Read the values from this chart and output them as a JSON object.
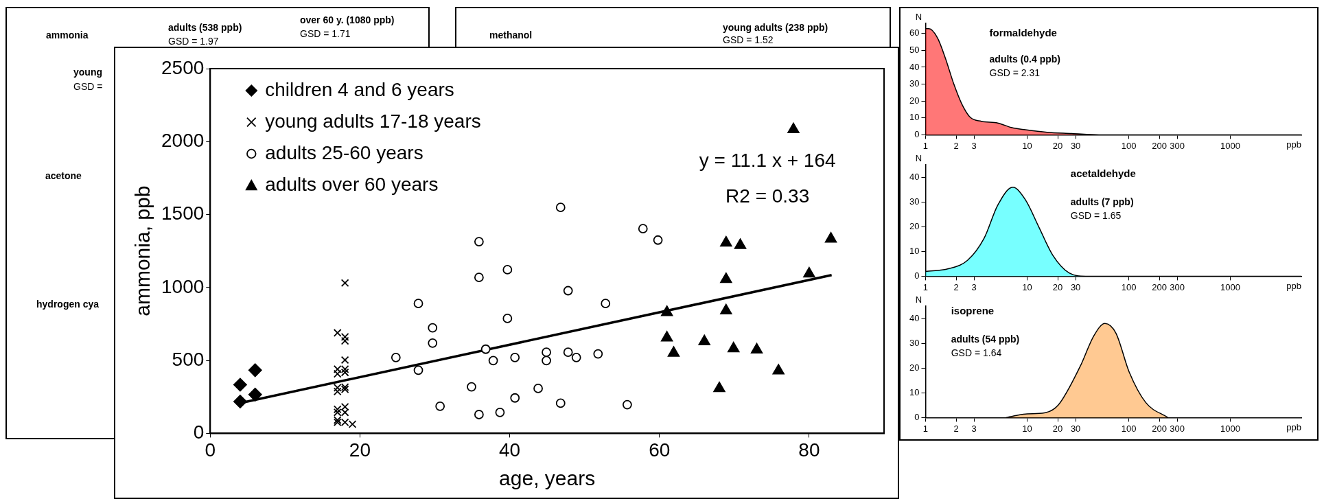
{
  "chart_data": [
    {
      "type": "scatter",
      "xlabel": "age, years",
      "ylabel": "ammonia, ppb",
      "xlim": [
        0,
        90
      ],
      "xticks": [
        0,
        20,
        40,
        60,
        80
      ],
      "ylim": [
        0,
        2500
      ],
      "yticks": [
        0,
        500,
        1000,
        1500,
        2000,
        2500
      ],
      "legend": "top left",
      "annotations": [
        "y = 11.1 x + 164",
        "R2 = 0.33"
      ],
      "series": [
        {
          "name": "children 4 and 6 years",
          "color": "#000000",
          "marker": "diamond",
          "x": [
            4,
            4,
            6,
            6
          ],
          "values": [
            218,
            334,
            433,
            266
          ]
        },
        {
          "name": "young adults 17-18 years",
          "color": "#000000",
          "marker": "cross",
          "x": [
            18,
            17,
            18,
            18,
            18,
            17,
            18,
            17,
            18,
            17,
            18,
            17,
            18,
            17,
            18,
            17,
            17,
            17,
            18,
            19,
            18
          ],
          "values": [
            1031,
            689,
            661,
            634,
            503,
            440,
            440,
            408,
            418,
            313,
            317,
            287,
            302,
            165,
            182,
            144,
            91,
            76,
            76,
            63,
            144
          ]
        },
        {
          "name": "adults 25-60 years",
          "color": "#000000",
          "marker": "circle",
          "x": [
            24.8,
            27.8,
            27.8,
            29.7,
            29.7,
            30.7,
            34.9,
            35.9,
            35.9,
            35.9,
            36.8,
            37.8,
            38.7,
            39.7,
            39.7,
            40.7,
            40.7,
            43.8,
            44.9,
            44.9,
            46.8,
            46.8,
            47.8,
            47.8,
            48.9,
            51.8,
            52.8,
            55.7,
            57.8,
            59.8
          ],
          "values": [
            520,
            890,
            433,
            723,
            619,
            186,
            319,
            1314,
            1069,
            129,
            577,
            499,
            144,
            1122,
            788,
            520,
            243,
            308,
            556,
            499,
            1549,
            207,
            978,
            556,
            520,
            545,
            890,
            197,
            1403,
            1325
          ]
        },
        {
          "name": "adults over 60 years",
          "color": "#000000",
          "marker": "triangle",
          "x": [
            77.9,
            61,
            61,
            61.9,
            66,
            68,
            68.9,
            68.9,
            68.9,
            69.9,
            70.8,
            73,
            75.9,
            80,
            82.9
          ],
          "values": [
            2083,
            830,
            655,
            551,
            630,
            308,
            1306,
            1056,
            841,
            581,
            1289,
            573,
            429,
            1094,
            1333
          ]
        },
        {
          "type": "line",
          "color": "#000000",
          "line_style": "solid",
          "x": [
            4,
            83
          ],
          "values": [
            208,
            1085
          ]
        }
      ]
    },
    {
      "type": "area",
      "title": "formaldehyde",
      "xlabel": "ppb",
      "ylabel": "N",
      "log": "x",
      "xlim": [
        1,
        5000
      ],
      "xticks": [
        1,
        2,
        3,
        10,
        20,
        30,
        100,
        200,
        300,
        1000
      ],
      "ylim": [
        0,
        66
      ],
      "yticks": [
        0,
        10,
        20,
        30,
        40,
        50,
        60
      ],
      "annotations": [
        "adults (0.4 ppb)",
        "GSD = 2.31"
      ],
      "series": [
        {
          "color": "#ff0000",
          "x": [
            1,
            1.08,
            1.31,
            1.57,
            1.9,
            2.29,
            2.76,
            3.54,
            5.13,
            7,
            9.6,
            15.7,
            27.5,
            51,
            5000
          ],
          "values": [
            62.8,
            62.8,
            57.4,
            45.3,
            30,
            17.9,
            10.3,
            8,
            7,
            4.3,
            3,
            1.5,
            0.8,
            0,
            0
          ]
        }
      ]
    },
    {
      "type": "area",
      "title": "acetaldehyde",
      "xlabel": "ppb",
      "ylabel": "N",
      "log": "x",
      "xlim": [
        1,
        5000
      ],
      "xticks": [
        1,
        2,
        3,
        10,
        20,
        30,
        100,
        200,
        300,
        1000
      ],
      "ylim": [
        0,
        45
      ],
      "yticks": [
        0,
        10,
        20,
        30,
        40
      ],
      "annotations": [
        "adults (7 ppb)",
        "GSD = 1.65"
      ],
      "series": [
        {
          "color": "#00ffff",
          "x": [
            1,
            1.68,
            2.59,
            3.77,
            5.13,
            7.23,
            9.6,
            13.1,
            17.8,
            25.9,
            37.6,
            5000
          ],
          "values": [
            1.9,
            3,
            6.4,
            15.3,
            28.6,
            35.9,
            30.9,
            19.7,
            8.6,
            1.3,
            0,
            0
          ]
        }
      ]
    },
    {
      "type": "area",
      "title": "isoprene",
      "xlabel": "ppb",
      "ylabel": "N",
      "log": "x",
      "xlim": [
        1,
        5000
      ],
      "xticks": [
        1,
        2,
        3,
        10,
        20,
        30,
        100,
        200,
        300,
        1000
      ],
      "ylim": [
        0,
        45
      ],
      "yticks": [
        0,
        10,
        20,
        30,
        40
      ],
      "annotations": [
        "adults (54 ppb)",
        "GSD = 1.64"
      ],
      "series": [
        {
          "color": "#ff9933",
          "x": [
            6.2,
            7.9,
            10,
            14.8,
            20.2,
            33.3,
            45.3,
            58.3,
            74.8,
            101,
            147,
            243
          ],
          "values": [
            0,
            0.9,
            1.5,
            1.9,
            5,
            20.7,
            33,
            38,
            34.1,
            18.4,
            6.1,
            0
          ]
        }
      ]
    },
    {
      "type": "other",
      "annotations": [
        "ammonia",
        "adults (538 ppb)",
        "GSD = 1.97",
        "over 60 y. (1080 ppb)",
        "GSD = 1.71",
        "young",
        "GSD =",
        "acetone",
        "hydrogen cya",
        "methanol",
        "young adults (238 ppb)",
        "GSD = 1.52"
      ]
    }
  ]
}
